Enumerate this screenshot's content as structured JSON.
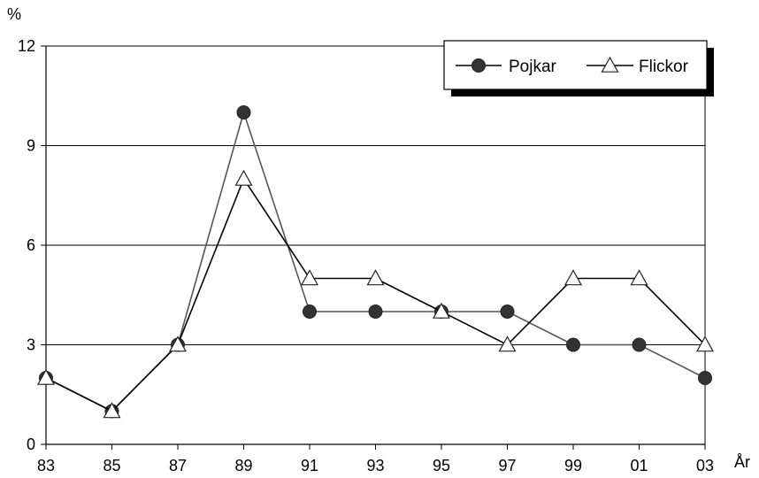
{
  "chart_data": {
    "type": "line",
    "title": "",
    "ylabel": "%",
    "xlabel": "År",
    "categories": [
      "83",
      "85",
      "87",
      "89",
      "91",
      "93",
      "95",
      "97",
      "99",
      "01",
      "03"
    ],
    "yticks": [
      "0",
      "3",
      "6",
      "9",
      "12"
    ],
    "ylim": [
      0,
      12
    ],
    "grid": true,
    "legend_position": "top-right",
    "series": [
      {
        "name": "Pojkar",
        "values": [
          2,
          1,
          3,
          10,
          4,
          4,
          4,
          4,
          3,
          3,
          2
        ],
        "marker": "filled-circle",
        "line_color": "#555555"
      },
      {
        "name": "Flickor",
        "values": [
          2,
          1,
          3,
          8,
          5,
          5,
          4,
          3,
          5,
          5,
          3
        ],
        "marker": "open-triangle",
        "line_color": "#000000"
      }
    ]
  }
}
